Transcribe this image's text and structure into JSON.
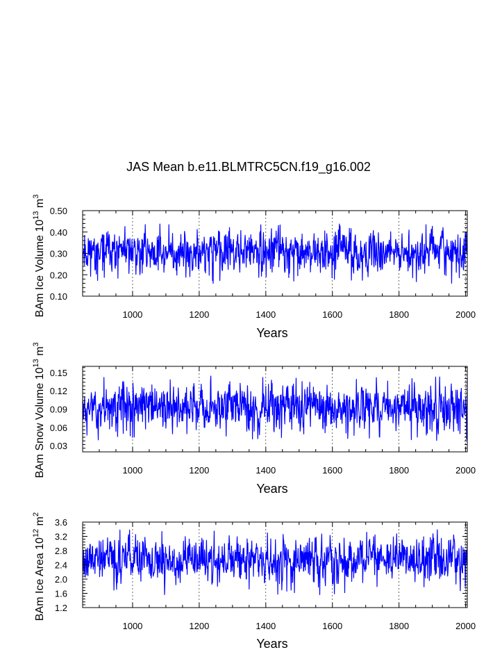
{
  "chart_data": {
    "type": "line",
    "title": "JAS Mean b.e11.BLMTRC5CN.f19_g16.002",
    "panels": [
      {
        "id": "ice-volume",
        "ylabel": "BAm Ice Volume 10",
        "ylabel_exp": "13",
        "ylabel_unit": " m",
        "ylabel_unit_exp": "3",
        "xlabel": "Years",
        "xlim": [
          850,
          2005
        ],
        "ylim": [
          0.1,
          0.5
        ],
        "yticks": [
          "0.10",
          "0.20",
          "0.30",
          "0.40",
          "0.50"
        ],
        "xticks": [
          "1000",
          "1200",
          "1400",
          "1600",
          "1800",
          "2000"
        ],
        "grid_x": [
          1000,
          1200,
          1400,
          1600,
          1800,
          2000
        ],
        "series": {
          "name": "Ice Volume",
          "color": "#0000ff",
          "mean": 0.31,
          "amp": 0.06,
          "min_val": 0.12,
          "max_val": 0.49,
          "seed": 11
        }
      },
      {
        "id": "snow-volume",
        "ylabel": "BAm Snow Volume 10",
        "ylabel_exp": "13",
        "ylabel_unit": " m",
        "ylabel_unit_exp": "3",
        "xlabel": "Years",
        "xlim": [
          850,
          2005
        ],
        "ylim": [
          0.02,
          0.16
        ],
        "yticks": [
          "0.03",
          "0.06",
          "0.09",
          "0.12",
          "0.15"
        ],
        "xticks": [
          "1000",
          "1200",
          "1400",
          "1600",
          "1800",
          "2000"
        ],
        "grid_x": [
          1000,
          1200,
          1400,
          1600,
          1800,
          2000
        ],
        "series": {
          "name": "Snow Volume",
          "color": "#0000ff",
          "mean": 0.095,
          "amp": 0.022,
          "min_val": 0.035,
          "max_val": 0.155,
          "seed": 23
        }
      },
      {
        "id": "ice-area",
        "ylabel": "BAm Ice Area 10",
        "ylabel_exp": "12",
        "ylabel_unit": " m",
        "ylabel_unit_exp": "2",
        "xlabel": "Years",
        "xlim": [
          850,
          2005
        ],
        "ylim": [
          1.2,
          3.6
        ],
        "yticks": [
          "1.2",
          "1.6",
          "2.0",
          "2.4",
          "2.8",
          "3.2",
          "3.6"
        ],
        "xticks": [
          "1000",
          "1200",
          "1400",
          "1600",
          "1800",
          "2000"
        ],
        "grid_x": [
          1000,
          1200,
          1400,
          1600,
          1800,
          2000
        ],
        "series": {
          "name": "Ice Area",
          "color": "#0000ff",
          "mean": 2.55,
          "amp": 0.38,
          "min_val": 1.35,
          "max_val": 3.5,
          "seed": 37
        }
      }
    ]
  }
}
